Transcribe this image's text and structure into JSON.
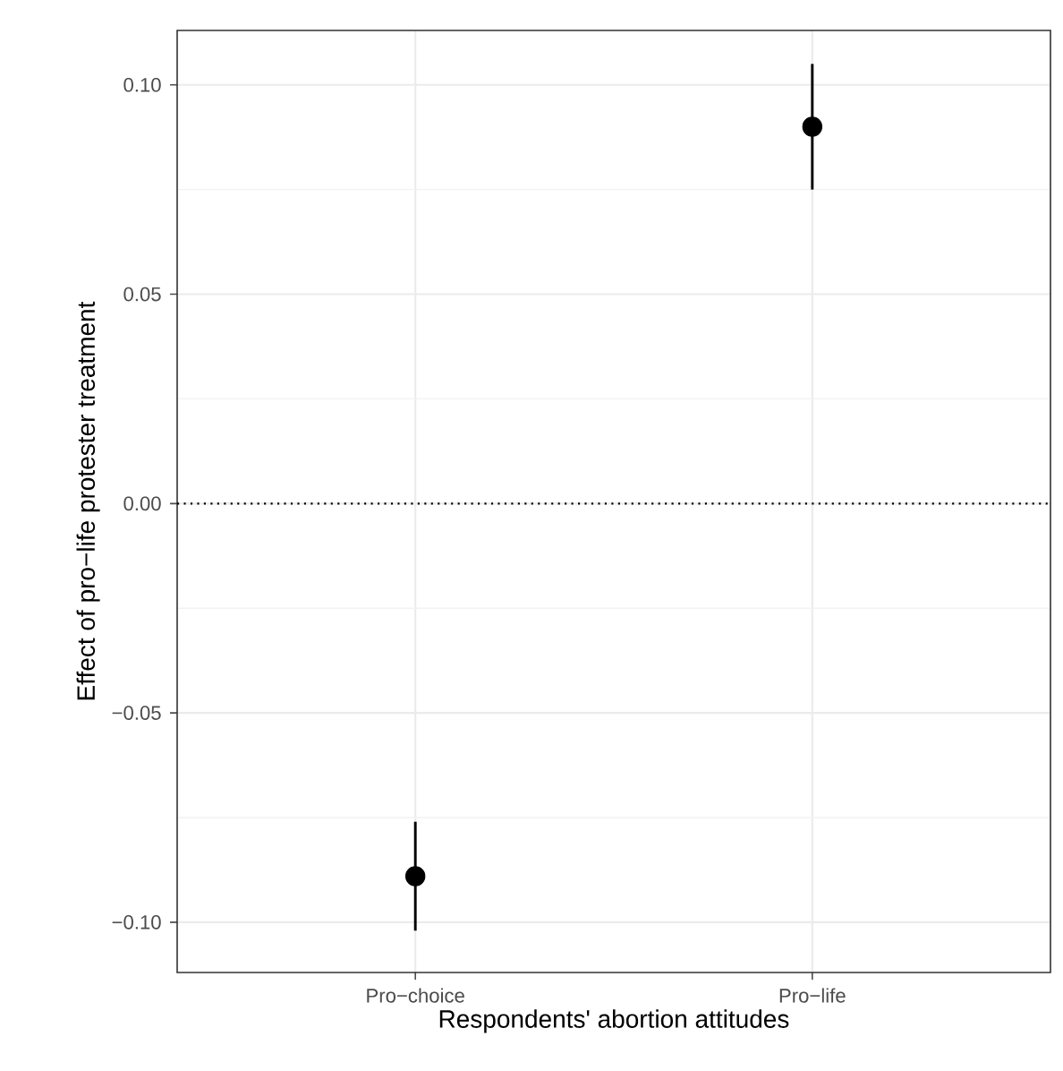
{
  "chart_data": {
    "type": "scatter",
    "xlabel": "Respondents' abortion attitudes",
    "ylabel": "Effect of pro−life protester treatment",
    "categories": [
      "Pro−choice",
      "Pro−life"
    ],
    "values": [
      -0.089,
      0.09
    ],
    "errors": [
      [
        -0.102,
        -0.076
      ],
      [
        0.075,
        0.105
      ]
    ],
    "color": "#000000",
    "marker": "circle",
    "ylim": [
      -0.112,
      0.113
    ],
    "yticks": [
      {
        "value": -0.1,
        "label": "−0.10"
      },
      {
        "value": -0.05,
        "label": "−0.05"
      },
      {
        "value": 0,
        "label": "0.00"
      },
      {
        "value": 0.05,
        "label": "0.05"
      },
      {
        "value": 0.1,
        "label": "0.10"
      }
    ],
    "grid": true,
    "ref_lines": [
      {
        "axis": "y",
        "value": 0,
        "line_style": "dotted"
      }
    ]
  }
}
